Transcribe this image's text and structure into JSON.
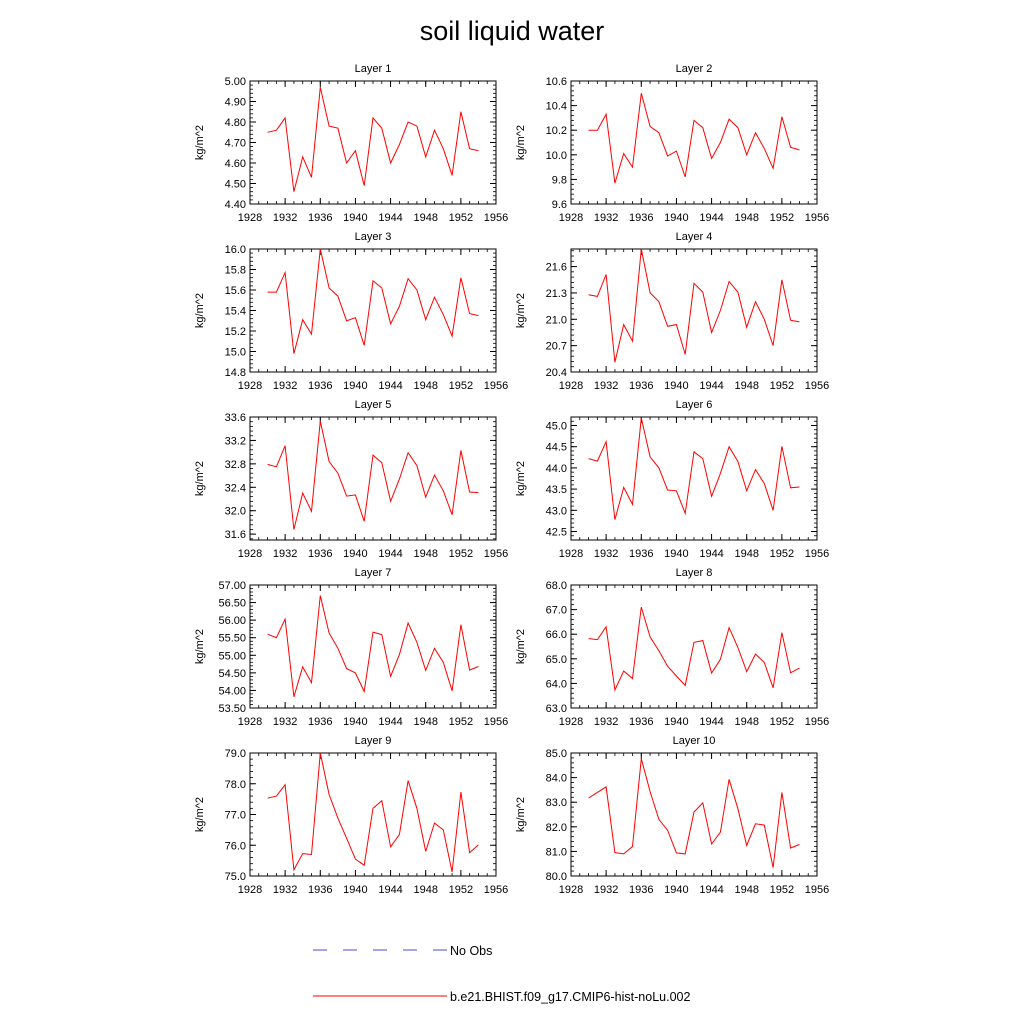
{
  "title": "soil liquid water",
  "legend": [
    {
      "label": "No Obs",
      "color": "#4a4acc",
      "dash": true
    },
    {
      "label": "b.e21.BHIST.f09_g17.CMIP6-hist-noLu.002",
      "color": "#ff0000",
      "dash": false
    }
  ],
  "colors": {
    "series": "#ff0000",
    "axis": "#000000"
  },
  "chart_data": [
    {
      "type": "line",
      "title": "Layer 1",
      "ylabel": "kg/m^2",
      "xlim": [
        1928,
        1956
      ],
      "xticks": [
        1928,
        1932,
        1936,
        1940,
        1944,
        1948,
        1952,
        1956
      ],
      "ylim": [
        4.4,
        5.0
      ],
      "yticks": [
        "4.40",
        "4.50",
        "4.60",
        "4.70",
        "4.80",
        "4.90",
        "5.00"
      ],
      "x": [
        1930,
        1931,
        1932,
        1933,
        1934,
        1935,
        1936,
        1937,
        1938,
        1939,
        1940,
        1941,
        1942,
        1943,
        1944,
        1945,
        1946,
        1947,
        1948,
        1949,
        1950,
        1951,
        1952,
        1953,
        1954
      ],
      "series": [
        {
          "name": "b.e21.BHIST.f09_g17.CMIP6-hist-noLu.002",
          "values": [
            4.75,
            4.76,
            4.82,
            4.46,
            4.63,
            4.53,
            4.97,
            4.78,
            4.77,
            4.6,
            4.66,
            4.49,
            4.82,
            4.77,
            4.6,
            4.69,
            4.8,
            4.78,
            4.63,
            4.76,
            4.67,
            4.54,
            4.85,
            4.67,
            4.66
          ]
        }
      ]
    },
    {
      "type": "line",
      "title": "Layer 2",
      "ylabel": "kg/m^2",
      "xlim": [
        1928,
        1956
      ],
      "xticks": [
        1928,
        1932,
        1936,
        1940,
        1944,
        1948,
        1952,
        1956
      ],
      "ylim": [
        9.6,
        10.6
      ],
      "yticks": [
        "9.6",
        "9.8",
        "10.0",
        "10.2",
        "10.4",
        "10.6"
      ],
      "x": [
        1930,
        1931,
        1932,
        1933,
        1934,
        1935,
        1936,
        1937,
        1938,
        1939,
        1940,
        1941,
        1942,
        1943,
        1944,
        1945,
        1946,
        1947,
        1948,
        1949,
        1950,
        1951,
        1952,
        1953,
        1954
      ],
      "series": [
        {
          "name": "b.e21.BHIST.f09_g17.CMIP6-hist-noLu.002",
          "values": [
            10.2,
            10.2,
            10.33,
            9.77,
            10.01,
            9.9,
            10.5,
            10.23,
            10.18,
            9.99,
            10.03,
            9.82,
            10.28,
            10.22,
            9.97,
            10.1,
            10.29,
            10.22,
            10.0,
            10.18,
            10.05,
            9.89,
            10.31,
            10.06,
            10.04
          ]
        }
      ]
    },
    {
      "type": "line",
      "title": "Layer 3",
      "ylabel": "kg/m^2",
      "xlim": [
        1928,
        1956
      ],
      "xticks": [
        1928,
        1932,
        1936,
        1940,
        1944,
        1948,
        1952,
        1956
      ],
      "ylim": [
        14.8,
        16.0
      ],
      "yticks": [
        "14.8",
        "15.0",
        "15.2",
        "15.4",
        "15.6",
        "15.8",
        "16.0"
      ],
      "x": [
        1930,
        1931,
        1932,
        1933,
        1934,
        1935,
        1936,
        1937,
        1938,
        1939,
        1940,
        1941,
        1942,
        1943,
        1944,
        1945,
        1946,
        1947,
        1948,
        1949,
        1950,
        1951,
        1952,
        1953,
        1954
      ],
      "series": [
        {
          "name": "b.e21.BHIST.f09_g17.CMIP6-hist-noLu.002",
          "values": [
            15.58,
            15.58,
            15.77,
            14.98,
            15.31,
            15.17,
            16.0,
            15.62,
            15.54,
            15.3,
            15.33,
            15.06,
            15.69,
            15.62,
            15.27,
            15.44,
            15.71,
            15.6,
            15.31,
            15.53,
            15.36,
            15.15,
            15.72,
            15.37,
            15.35
          ]
        }
      ]
    },
    {
      "type": "line",
      "title": "Layer 4",
      "ylabel": "kg/m^2",
      "xlim": [
        1928,
        1956
      ],
      "xticks": [
        1928,
        1932,
        1936,
        1940,
        1944,
        1948,
        1952,
        1956
      ],
      "ylim": [
        20.4,
        21.8
      ],
      "yticks": [
        "20.4",
        "20.7",
        "21.0",
        "21.3",
        "21.6"
      ],
      "x": [
        1930,
        1931,
        1932,
        1933,
        1934,
        1935,
        1936,
        1937,
        1938,
        1939,
        1940,
        1941,
        1942,
        1943,
        1944,
        1945,
        1946,
        1947,
        1948,
        1949,
        1950,
        1951,
        1952,
        1953,
        1954
      ],
      "series": [
        {
          "name": "b.e21.BHIST.f09_g17.CMIP6-hist-noLu.002",
          "values": [
            21.28,
            21.26,
            21.51,
            20.51,
            20.94,
            20.75,
            21.8,
            21.3,
            21.2,
            20.92,
            20.94,
            20.6,
            21.41,
            21.31,
            20.85,
            21.1,
            21.43,
            21.31,
            20.91,
            21.2,
            21.0,
            20.7,
            21.45,
            20.99,
            20.97
          ]
        }
      ]
    },
    {
      "type": "line",
      "title": "Layer 5",
      "ylabel": "kg/m^2",
      "xlim": [
        1928,
        1956
      ],
      "xticks": [
        1928,
        1932,
        1936,
        1940,
        1944,
        1948,
        1952,
        1956
      ],
      "ylim": [
        31.5,
        33.6
      ],
      "yticks": [
        "31.6",
        "32.0",
        "32.4",
        "32.8",
        "33.2",
        "33.6"
      ],
      "x": [
        1930,
        1931,
        1932,
        1933,
        1934,
        1935,
        1936,
        1937,
        1938,
        1939,
        1940,
        1941,
        1942,
        1943,
        1944,
        1945,
        1946,
        1947,
        1948,
        1949,
        1950,
        1951,
        1952,
        1953,
        1954
      ],
      "series": [
        {
          "name": "b.e21.BHIST.f09_g17.CMIP6-hist-noLu.002",
          "values": [
            32.79,
            32.75,
            33.11,
            31.68,
            32.3,
            31.99,
            33.53,
            32.84,
            32.64,
            32.25,
            32.27,
            31.82,
            32.95,
            32.82,
            32.16,
            32.54,
            32.99,
            32.77,
            32.23,
            32.61,
            32.34,
            31.93,
            33.03,
            32.32,
            32.31
          ]
        }
      ]
    },
    {
      "type": "line",
      "title": "Layer 6",
      "ylabel": "kg/m^2",
      "xlim": [
        1928,
        1956
      ],
      "xticks": [
        1928,
        1932,
        1936,
        1940,
        1944,
        1948,
        1952,
        1956
      ],
      "ylim": [
        42.3,
        45.2
      ],
      "yticks": [
        "42.5",
        "43.0",
        "43.5",
        "44.0",
        "44.5",
        "45.0"
      ],
      "x": [
        1930,
        1931,
        1932,
        1933,
        1934,
        1935,
        1936,
        1937,
        1938,
        1939,
        1940,
        1941,
        1942,
        1943,
        1944,
        1945,
        1946,
        1947,
        1948,
        1949,
        1950,
        1951,
        1952,
        1953,
        1954
      ],
      "series": [
        {
          "name": "b.e21.BHIST.f09_g17.CMIP6-hist-noLu.002",
          "values": [
            44.22,
            44.16,
            44.62,
            42.78,
            43.54,
            43.14,
            45.18,
            44.26,
            44.0,
            43.48,
            43.46,
            42.93,
            44.38,
            44.22,
            43.33,
            43.87,
            44.5,
            44.15,
            43.46,
            43.96,
            43.63,
            43.0,
            44.51,
            43.53,
            43.55
          ]
        }
      ]
    },
    {
      "type": "line",
      "title": "Layer 7",
      "ylabel": "kg/m^2",
      "xlim": [
        1928,
        1956
      ],
      "xticks": [
        1928,
        1932,
        1936,
        1940,
        1944,
        1948,
        1952,
        1956
      ],
      "ylim": [
        53.5,
        57.0
      ],
      "yticks": [
        "53.50",
        "54.00",
        "54.50",
        "55.00",
        "55.50",
        "56.00",
        "56.50",
        "57.00"
      ],
      "x": [
        1930,
        1931,
        1932,
        1933,
        1934,
        1935,
        1936,
        1937,
        1938,
        1939,
        1940,
        1941,
        1942,
        1943,
        1944,
        1945,
        1946,
        1947,
        1948,
        1949,
        1950,
        1951,
        1952,
        1953,
        1954
      ],
      "series": [
        {
          "name": "b.e21.BHIST.f09_g17.CMIP6-hist-noLu.002",
          "values": [
            55.6,
            55.5,
            56.03,
            53.82,
            54.67,
            54.22,
            56.7,
            55.63,
            55.2,
            54.62,
            54.5,
            53.97,
            55.66,
            55.59,
            54.4,
            55.02,
            55.92,
            55.37,
            54.57,
            55.2,
            54.8,
            53.99,
            55.87,
            54.58,
            54.68
          ]
        }
      ]
    },
    {
      "type": "line",
      "title": "Layer 8",
      "ylabel": "kg/m^2",
      "xlim": [
        1928,
        1956
      ],
      "xticks": [
        1928,
        1932,
        1936,
        1940,
        1944,
        1948,
        1952,
        1956
      ],
      "ylim": [
        63.0,
        68.0
      ],
      "yticks": [
        "63.0",
        "64.0",
        "65.0",
        "66.0",
        "67.0",
        "68.0"
      ],
      "x": [
        1930,
        1931,
        1932,
        1933,
        1934,
        1935,
        1936,
        1937,
        1938,
        1939,
        1940,
        1941,
        1942,
        1943,
        1944,
        1945,
        1946,
        1947,
        1948,
        1949,
        1950,
        1951,
        1952,
        1953,
        1954
      ],
      "series": [
        {
          "name": "b.e21.BHIST.f09_g17.CMIP6-hist-noLu.002",
          "values": [
            65.82,
            65.78,
            66.3,
            63.73,
            64.5,
            64.2,
            67.1,
            65.89,
            65.33,
            64.7,
            64.3,
            63.92,
            65.67,
            65.74,
            64.42,
            64.98,
            66.27,
            65.46,
            64.48,
            65.19,
            64.85,
            63.82,
            66.06,
            64.43,
            64.62
          ]
        }
      ]
    },
    {
      "type": "line",
      "title": "Layer 9",
      "ylabel": "kg/m^2",
      "xlim": [
        1928,
        1956
      ],
      "xticks": [
        1928,
        1932,
        1936,
        1940,
        1944,
        1948,
        1952,
        1956
      ],
      "ylim": [
        75.0,
        79.0
      ],
      "yticks": [
        "75.0",
        "76.0",
        "77.0",
        "78.0",
        "79.0"
      ],
      "x": [
        1930,
        1931,
        1932,
        1933,
        1934,
        1935,
        1936,
        1937,
        1938,
        1939,
        1940,
        1941,
        1942,
        1943,
        1944,
        1945,
        1946,
        1947,
        1948,
        1949,
        1950,
        1951,
        1952,
        1953,
        1954
      ],
      "series": [
        {
          "name": "b.e21.BHIST.f09_g17.CMIP6-hist-noLu.002",
          "values": [
            77.53,
            77.6,
            77.97,
            75.2,
            75.73,
            75.7,
            79.0,
            77.65,
            76.88,
            76.23,
            75.55,
            75.35,
            77.2,
            77.45,
            75.95,
            76.35,
            78.1,
            77.2,
            75.8,
            76.72,
            76.5,
            75.13,
            77.73,
            75.76,
            76.01
          ]
        }
      ]
    },
    {
      "type": "line",
      "title": "Layer 10",
      "ylabel": "kg/m^2",
      "xlim": [
        1928,
        1956
      ],
      "xticks": [
        1928,
        1932,
        1936,
        1940,
        1944,
        1948,
        1952,
        1956
      ],
      "ylim": [
        80.0,
        85.0
      ],
      "yticks": [
        "80.0",
        "81.0",
        "82.0",
        "83.0",
        "84.0",
        "85.0"
      ],
      "x": [
        1930,
        1931,
        1932,
        1933,
        1934,
        1935,
        1936,
        1937,
        1938,
        1939,
        1940,
        1941,
        1942,
        1943,
        1944,
        1945,
        1946,
        1947,
        1948,
        1949,
        1950,
        1951,
        1952,
        1953,
        1954
      ],
      "series": [
        {
          "name": "b.e21.BHIST.f09_g17.CMIP6-hist-noLu.002",
          "values": [
            83.17,
            83.4,
            83.62,
            80.95,
            80.9,
            81.2,
            84.77,
            83.43,
            82.3,
            81.86,
            80.94,
            80.9,
            82.6,
            82.97,
            81.3,
            81.78,
            83.93,
            82.73,
            81.24,
            82.12,
            82.07,
            80.34,
            83.4,
            81.14,
            81.28
          ]
        }
      ]
    }
  ]
}
